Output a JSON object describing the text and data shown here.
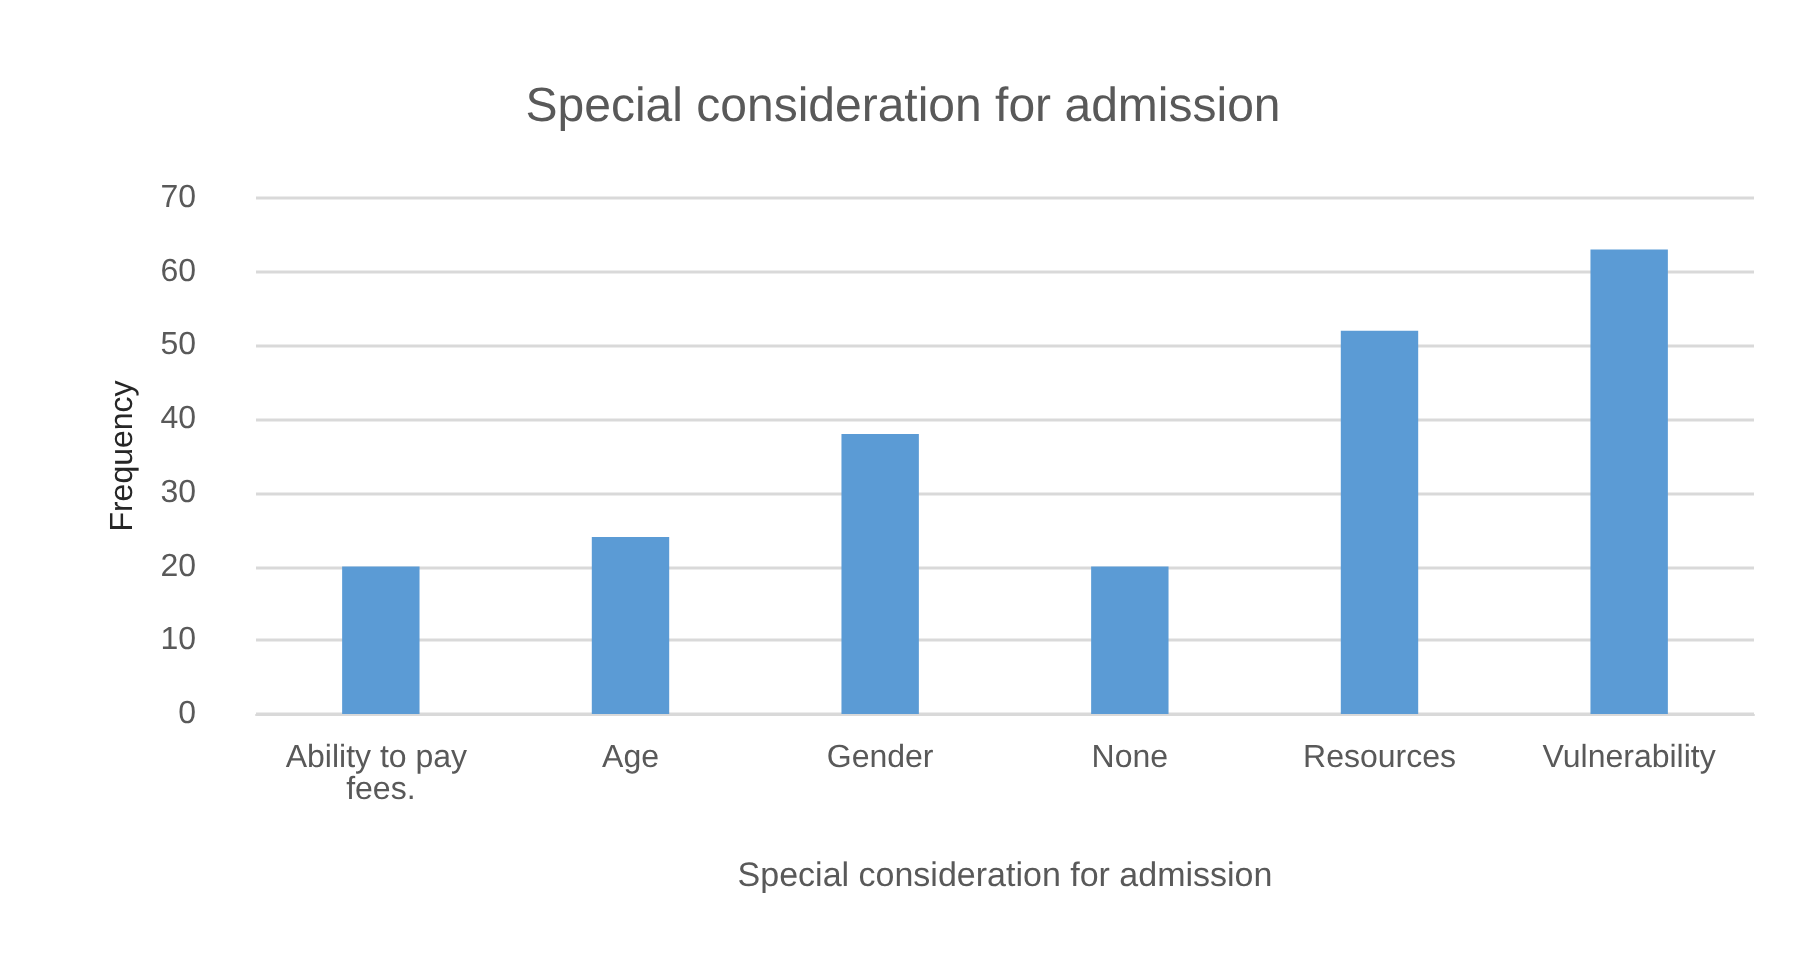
{
  "chart_data": {
    "type": "bar",
    "title": "Special consideration for admission",
    "xlabel": "Special consideration for admission",
    "ylabel": "Frequency",
    "categories": [
      "Ability to pay fees.",
      "Age",
      "Gender",
      "None",
      "Resources",
      "Vulnerability"
    ],
    "values": [
      20,
      24,
      38,
      20,
      52,
      63
    ],
    "color": "#5b9bd5",
    "ylim": [
      0,
      70
    ],
    "yticks": [
      0,
      10,
      20,
      30,
      40,
      50,
      60,
      70
    ],
    "grid": "y"
  }
}
